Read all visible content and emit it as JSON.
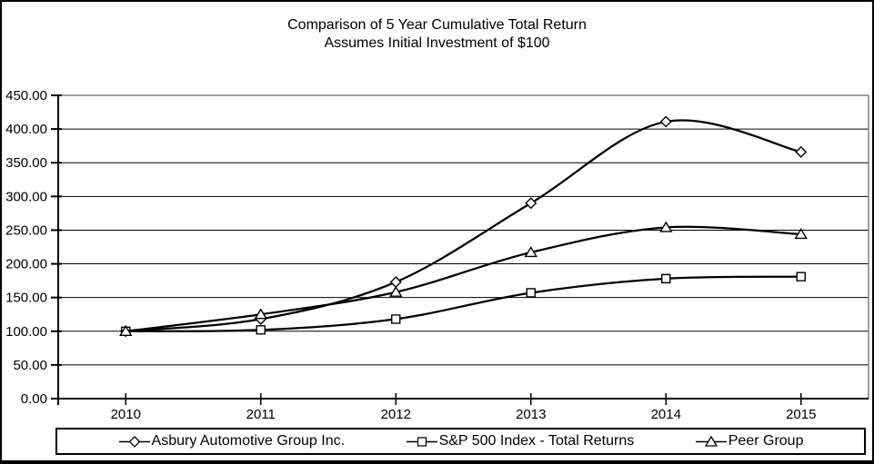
{
  "title": {
    "line1": "Comparison of 5 Year Cumulative Total Return",
    "line2": "Assumes Initial Investment of $100"
  },
  "colors": {
    "series_line": "#000000",
    "gridline": "#000000",
    "axis": "#000000",
    "plot_border": "#808080",
    "marker_fill": "#ffffff",
    "text": "#000000",
    "background": "#ffffff"
  },
  "chart_data": {
    "type": "line",
    "smoothed": true,
    "x": [
      "2010",
      "2011",
      "2012",
      "2013",
      "2014",
      "2015"
    ],
    "series": [
      {
        "name": "Asbury Automotive Group Inc.",
        "marker": "diamond",
        "values": [
          100,
          118,
          173,
          290,
          411,
          366
        ]
      },
      {
        "name": "S&P 500 Index - Total Returns",
        "marker": "square",
        "values": [
          100,
          102,
          118,
          157,
          178,
          181
        ]
      },
      {
        "name": "Peer Group",
        "marker": "triangle",
        "values": [
          100,
          125,
          158,
          217,
          254,
          244
        ]
      }
    ],
    "title": "Comparison of 5 Year Cumulative Total Return",
    "subtitle": "Assumes Initial Investment of $100",
    "xlabel": "",
    "ylabel": "",
    "ylim": [
      0,
      450
    ],
    "ytick_step": 50,
    "ytick_labels": [
      "0.00",
      "50.00",
      "100.00",
      "150.00",
      "200.00",
      "250.00",
      "300.00",
      "350.00",
      "400.00",
      "450.00"
    ],
    "grid": "horizontal",
    "legend_position": "bottom"
  }
}
